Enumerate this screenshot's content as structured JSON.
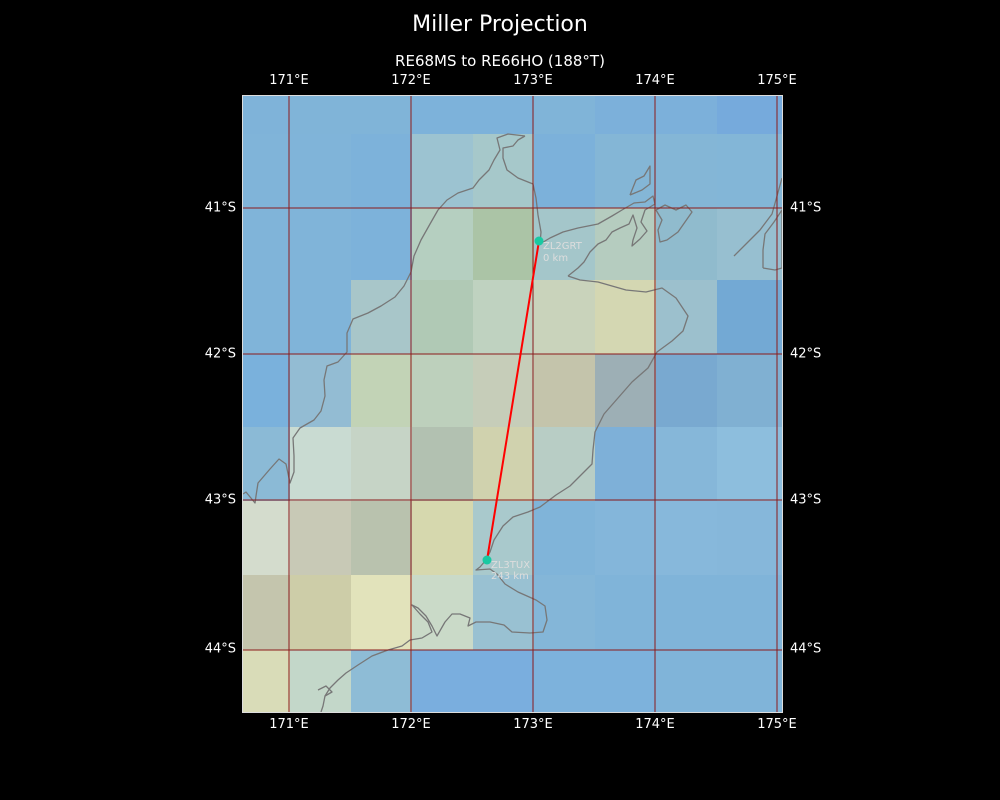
{
  "title": "Miller Projection",
  "subtitle": "RE68MS to RE66HO (188°T)",
  "lon_ticks": [
    "171°E",
    "172°E",
    "173°E",
    "174°E",
    "175°E"
  ],
  "lat_ticks": [
    "41°S",
    "42°S",
    "43°S",
    "44°S"
  ],
  "colors": {
    "background": "#000000",
    "path_line": "#ff0000",
    "station_marker": "#19c9a2",
    "gridline": "#8b1a1a",
    "coastline": "#777777",
    "station_label": "#dddddd"
  },
  "path": {
    "start": {
      "label": "ZL2GRT",
      "distance": "0 km"
    },
    "end": {
      "label": "ZL3TUX",
      "distance": "243 km"
    }
  }
}
